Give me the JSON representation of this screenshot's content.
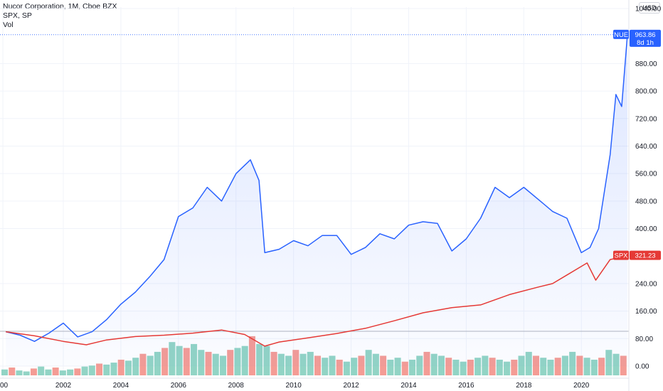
{
  "legend": {
    "line1": "Nucor Corporation, 1M, Cboe BZX",
    "line2": "SPX, SP",
    "line3": "Vol"
  },
  "currency": "USD",
  "colors": {
    "nue": "#2962ff",
    "spx": "#e53935",
    "vol_up": "#7fcdbb",
    "vol_down": "#f28b82",
    "grid": "#f0f3fa"
  },
  "badges": {
    "nue_symbol": "NUE",
    "nue_value": "963.86",
    "nue_countdown": "8d 1h",
    "spx_symbol": "SPX",
    "spx_value": "321.23"
  },
  "chart_data": {
    "type": "line",
    "x_ticks": [
      "00",
      "2002",
      "2004",
      "2006",
      "2008",
      "2010",
      "2012",
      "2014",
      "2016",
      "2018",
      "2020"
    ],
    "y_ticks": [
      "1040.00",
      "880.00",
      "800.00",
      "720.00",
      "640.00",
      "560.00",
      "480.00",
      "400.00",
      "240.00",
      "160.00",
      "80.00",
      "0.00"
    ],
    "series": [
      {
        "name": "NUE",
        "x": [
          2000.0,
          2000.5,
          2001.0,
          2001.5,
          2002.0,
          2002.5,
          2003.0,
          2003.5,
          2004.0,
          2004.5,
          2005.0,
          2005.5,
          2006.0,
          2006.5,
          2007.0,
          2007.5,
          2008.0,
          2008.5,
          2008.8,
          2009.0,
          2009.5,
          2010.0,
          2010.5,
          2011.0,
          2011.5,
          2012.0,
          2012.5,
          2013.0,
          2013.5,
          2014.0,
          2014.5,
          2015.0,
          2015.5,
          2016.0,
          2016.5,
          2017.0,
          2017.5,
          2018.0,
          2018.5,
          2019.0,
          2019.5,
          2020.0,
          2020.3,
          2020.6,
          2021.0,
          2021.2,
          2021.4,
          2021.6
        ],
        "y": [
          100,
          90,
          72,
          96,
          125,
          85,
          100,
          135,
          180,
          215,
          260,
          310,
          435,
          460,
          520,
          480,
          560,
          600,
          540,
          330,
          340,
          365,
          350,
          380,
          380,
          325,
          345,
          385,
          370,
          410,
          420,
          415,
          335,
          370,
          430,
          520,
          490,
          520,
          485,
          450,
          430,
          330,
          345,
          400,
          615,
          790,
          755,
          963.86
        ]
      },
      {
        "name": "SPX",
        "x": [
          2000.0,
          2001.0,
          2002.0,
          2002.8,
          2003.5,
          2004.5,
          2005.5,
          2006.5,
          2007.5,
          2008.3,
          2009.0,
          2009.5,
          2010.5,
          2011.5,
          2012.5,
          2013.5,
          2014.5,
          2015.5,
          2016.5,
          2017.5,
          2018.5,
          2019.0,
          2019.5,
          2020.2,
          2020.5,
          2021.0,
          2021.6
        ],
        "y": [
          100,
          88,
          72,
          62,
          76,
          86,
          90,
          96,
          105,
          92,
          58,
          70,
          82,
          95,
          110,
          132,
          155,
          170,
          178,
          208,
          230,
          240,
          265,
          300,
          250,
          310,
          321.23
        ]
      }
    ],
    "volume": {
      "note": "monthly volume bars, relative heights",
      "values": [
        0.6,
        0.8,
        0.5,
        0.4,
        0.7,
        0.9,
        0.6,
        0.8,
        0.5,
        0.6,
        0.7,
        0.9,
        1.0,
        1.2,
        1.1,
        1.3,
        1.6,
        1.5,
        1.8,
        2.2,
        2.0,
        2.4,
        2.8,
        3.4,
        3.0,
        2.8,
        3.2,
        2.6,
        2.4,
        2.2,
        2.0,
        2.6,
        2.8,
        3.0,
        4.0,
        3.2,
        3.0,
        2.4,
        2.2,
        2.0,
        2.6,
        2.2,
        2.4,
        2.0,
        1.8,
        2.0,
        1.6,
        1.4,
        1.8,
        2.0,
        2.6,
        2.2,
        2.0,
        1.6,
        1.8,
        1.4,
        1.6,
        2.0,
        2.4,
        2.2,
        2.0,
        1.8,
        1.6,
        1.4,
        1.6,
        1.8,
        2.0,
        1.8,
        1.6,
        1.4,
        1.6,
        2.0,
        2.4,
        2.0,
        1.8,
        1.6,
        1.8,
        2.0,
        2.4,
        2.0,
        1.8,
        1.6,
        1.8,
        2.6,
        2.2,
        2.0
      ],
      "ylim": [
        0,
        8
      ]
    },
    "ylim": [
      0,
      1040
    ],
    "xlim": [
      1999.8,
      2021.65
    ],
    "grid": true,
    "title": "",
    "xlabel": "",
    "ylabel": ""
  }
}
